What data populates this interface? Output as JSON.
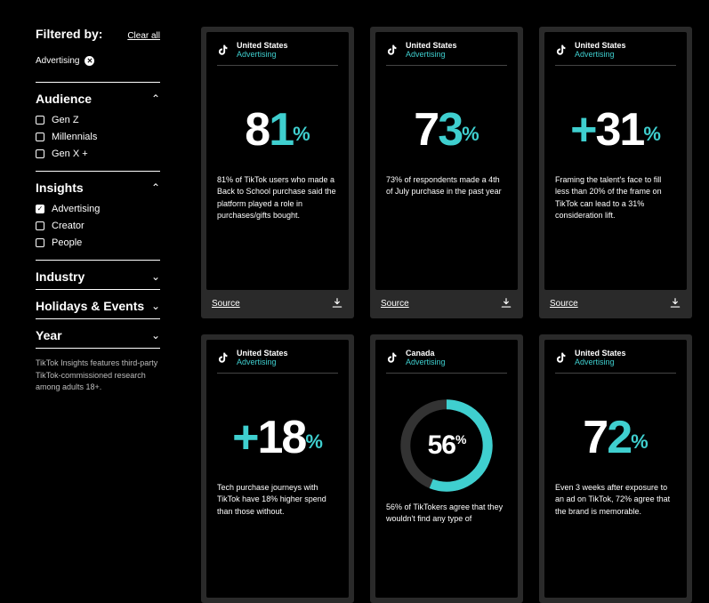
{
  "colors": {
    "accent": "#3fcfcf",
    "bg": "#000000",
    "card_bg": "#2a2a2a"
  },
  "sidebar": {
    "title": "Filtered by:",
    "clear": "Clear all",
    "active_tag": "Advertising",
    "sections": [
      {
        "title": "Audience",
        "open": true,
        "options": [
          {
            "label": "Gen Z",
            "checked": false
          },
          {
            "label": "Millennials",
            "checked": false
          },
          {
            "label": "Gen X +",
            "checked": false
          }
        ]
      },
      {
        "title": "Insights",
        "open": true,
        "options": [
          {
            "label": "Advertising",
            "checked": true
          },
          {
            "label": "Creator",
            "checked": false
          },
          {
            "label": "People",
            "checked": false
          }
        ]
      },
      {
        "title": "Industry",
        "open": false
      },
      {
        "title": "Holidays & Events",
        "open": false
      },
      {
        "title": "Year",
        "open": false
      }
    ],
    "footnote": "TikTok Insights features third-party TikTok-commissioned research among adults 18+."
  },
  "source_label": "Source",
  "cards": [
    {
      "country": "United States",
      "category": "Advertising",
      "stat": {
        "prefix": "",
        "value": "81",
        "percent": "%",
        "value_color": "mix"
      },
      "desc": "81% of TikTok users who made a Back to School purchase said the platform played a role in purchases/gifts bought."
    },
    {
      "country": "United States",
      "category": "Advertising",
      "stat": {
        "prefix": "",
        "value": "73",
        "percent": "%",
        "value_color": "mix"
      },
      "desc": "73% of respondents made a 4th of July purchase in the past year"
    },
    {
      "country": "United States",
      "category": "Advertising",
      "stat": {
        "prefix": "+",
        "value": "31",
        "percent": "%",
        "value_color": "white"
      },
      "desc": "Framing the talent's face to fill less than 20% of the frame on TikTok can lead to a 31% consideration lift."
    },
    {
      "country": "United States",
      "category": "Advertising",
      "stat": {
        "prefix": "+",
        "value": "18",
        "percent": "%",
        "value_color": "white"
      },
      "desc": "Tech purchase journeys with TikTok have 18% higher spend than those without."
    },
    {
      "country": "Canada",
      "category": "Advertising",
      "donut": {
        "value": "56",
        "percent": "%",
        "pct": 56
      },
      "desc": "56% of TikTokers agree that they wouldn't find any type of"
    },
    {
      "country": "United States",
      "category": "Advertising",
      "stat": {
        "prefix": "",
        "value": "72",
        "percent": "%",
        "value_color": "mix"
      },
      "desc": "Even 3 weeks after exposure to an ad on TikTok, 72% agree that the brand is memorable."
    }
  ]
}
